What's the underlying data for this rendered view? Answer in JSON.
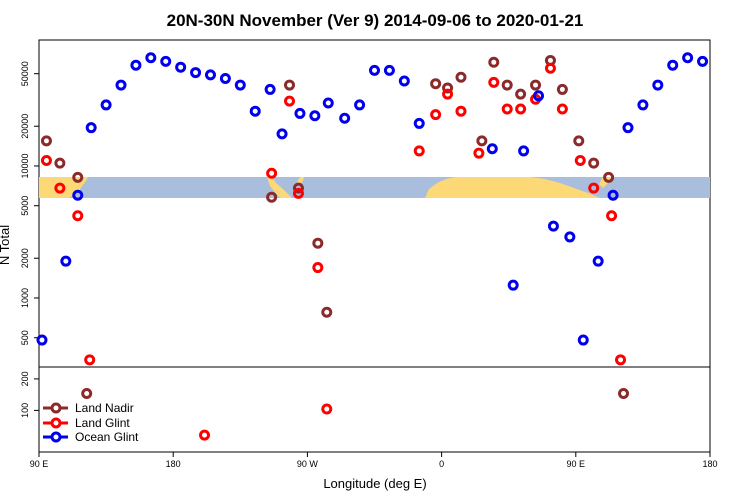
{
  "chart_data": {
    "type": "scatter",
    "title": "20N-30N November (Ver 9)   2014-09-06 to 2020-01-21",
    "xlabel": "Longitude (deg E)",
    "ylabel": "N Total",
    "x_ticks": [
      {
        "value": 90,
        "label": "90 E"
      },
      {
        "value": 180,
        "label": "180"
      },
      {
        "value": 270,
        "label": "90 W"
      },
      {
        "value": 360,
        "label": "0"
      },
      {
        "value": 450,
        "label": "90 E"
      },
      {
        "value": 540,
        "label": "180"
      }
    ],
    "xlim": [
      90,
      540
    ],
    "y_scale": "log",
    "upper_panel": {
      "ylim": [
        300,
        90000
      ],
      "y_ticks": [
        "500",
        "1000",
        "2000",
        "5000",
        "10000",
        "20000",
        "50000"
      ]
    },
    "lower_panel": {
      "ylim": [
        40,
        260
      ],
      "y_ticks": [
        "100",
        "200"
      ]
    },
    "map_strip": {
      "ocean_color": "#a8bedc",
      "land_color": "#fcd877"
    },
    "legend_position": "bottom-left",
    "series": [
      {
        "name": "Land Nadir",
        "color": "#8b2a2a",
        "points": [
          {
            "x": 95,
            "y": 15500
          },
          {
            "x": 104,
            "y": 10500
          },
          {
            "x": 116,
            "y": 8200
          },
          {
            "x": 122,
            "y": 145
          },
          {
            "x": 246,
            "y": 5800
          },
          {
            "x": 258,
            "y": 41000
          },
          {
            "x": 264,
            "y": 6800
          },
          {
            "x": 277,
            "y": 2600
          },
          {
            "x": 283,
            "y": 780
          },
          {
            "x": 356,
            "y": 42000
          },
          {
            "x": 364,
            "y": 39000
          },
          {
            "x": 373,
            "y": 47000
          },
          {
            "x": 387,
            "y": 15500
          },
          {
            "x": 395,
            "y": 61000
          },
          {
            "x": 404,
            "y": 41000
          },
          {
            "x": 413,
            "y": 35000
          },
          {
            "x": 423,
            "y": 41000
          },
          {
            "x": 433,
            "y": 63000
          },
          {
            "x": 441,
            "y": 38000
          },
          {
            "x": 452,
            "y": 15500
          },
          {
            "x": 462,
            "y": 10500
          },
          {
            "x": 472,
            "y": 8200
          },
          {
            "x": 482,
            "y": 145
          }
        ]
      },
      {
        "name": "Land Glint",
        "color": "#ff0000",
        "points": [
          {
            "x": 95,
            "y": 11000
          },
          {
            "x": 104,
            "y": 6800
          },
          {
            "x": 116,
            "y": 4200
          },
          {
            "x": 124,
            "y": 340
          },
          {
            "x": 201,
            "y": 58
          },
          {
            "x": 246,
            "y": 8800
          },
          {
            "x": 258,
            "y": 31000
          },
          {
            "x": 264,
            "y": 6200
          },
          {
            "x": 277,
            "y": 1700
          },
          {
            "x": 283,
            "y": 103
          },
          {
            "x": 345,
            "y": 13000
          },
          {
            "x": 356,
            "y": 24500
          },
          {
            "x": 364,
            "y": 35000
          },
          {
            "x": 373,
            "y": 26000
          },
          {
            "x": 385,
            "y": 12500
          },
          {
            "x": 395,
            "y": 43000
          },
          {
            "x": 404,
            "y": 27000
          },
          {
            "x": 413,
            "y": 27000
          },
          {
            "x": 423,
            "y": 32000
          },
          {
            "x": 433,
            "y": 55000
          },
          {
            "x": 441,
            "y": 27000
          },
          {
            "x": 453,
            "y": 11000
          },
          {
            "x": 462,
            "y": 6800
          },
          {
            "x": 474,
            "y": 4200
          },
          {
            "x": 480,
            "y": 340
          }
        ]
      },
      {
        "name": "Ocean Glint",
        "color": "#0000ee",
        "points": [
          {
            "x": 92,
            "y": 480
          },
          {
            "x": 108,
            "y": 1900
          },
          {
            "x": 116,
            "y": 6000
          },
          {
            "x": 125,
            "y": 19500
          },
          {
            "x": 135,
            "y": 29000
          },
          {
            "x": 145,
            "y": 41000
          },
          {
            "x": 155,
            "y": 58000
          },
          {
            "x": 165,
            "y": 66000
          },
          {
            "x": 175,
            "y": 62000
          },
          {
            "x": 185,
            "y": 56000
          },
          {
            "x": 195,
            "y": 51000
          },
          {
            "x": 205,
            "y": 49000
          },
          {
            "x": 215,
            "y": 46000
          },
          {
            "x": 225,
            "y": 41000
          },
          {
            "x": 235,
            "y": 26000
          },
          {
            "x": 245,
            "y": 38000
          },
          {
            "x": 253,
            "y": 17500
          },
          {
            "x": 265,
            "y": 25000
          },
          {
            "x": 275,
            "y": 24000
          },
          {
            "x": 284,
            "y": 30000
          },
          {
            "x": 295,
            "y": 23000
          },
          {
            "x": 305,
            "y": 29000
          },
          {
            "x": 315,
            "y": 53000
          },
          {
            "x": 325,
            "y": 53000
          },
          {
            "x": 335,
            "y": 44000
          },
          {
            "x": 345,
            "y": 21000
          },
          {
            "x": 394,
            "y": 13500
          },
          {
            "x": 408,
            "y": 1250
          },
          {
            "x": 415,
            "y": 13000
          },
          {
            "x": 425,
            "y": 34000
          },
          {
            "x": 435,
            "y": 3500
          },
          {
            "x": 446,
            "y": 2900
          },
          {
            "x": 455,
            "y": 480
          },
          {
            "x": 465,
            "y": 1900
          },
          {
            "x": 475,
            "y": 6000
          },
          {
            "x": 485,
            "y": 19500
          },
          {
            "x": 495,
            "y": 29000
          },
          {
            "x": 505,
            "y": 41000
          },
          {
            "x": 515,
            "y": 58000
          },
          {
            "x": 525,
            "y": 66000
          },
          {
            "x": 535,
            "y": 62000
          }
        ]
      }
    ]
  }
}
